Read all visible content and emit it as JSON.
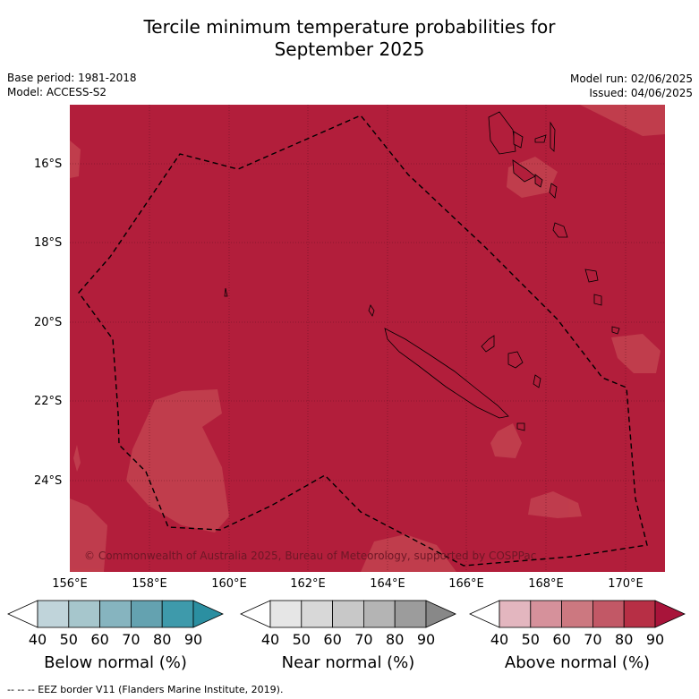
{
  "title_line1": "Tercile minimum temperature probabilities for",
  "title_line2": "September 2025",
  "base_period": "Base period: 1981-2018",
  "model": "Model: ACCESS-S2",
  "model_run": "Model run: 02/06/2025",
  "issued": "Issued: 04/06/2025",
  "lat_labels": [
    "16°S",
    "18°S",
    "20°S",
    "22°S",
    "24°S"
  ],
  "lon_labels": [
    "156°E",
    "158°E",
    "160°E",
    "162°E",
    "164°E",
    "166°E",
    "168°E",
    "170°E"
  ],
  "copyright": "© Commonwealth of Australia 2025, Bureau of Meteorology, supported by COSPPac",
  "map_colors": {
    "dominant": "#b21e3b",
    "lighter": "#c8485a",
    "ocean_dark": "#b21e3b"
  },
  "colorbars": [
    {
      "label": "Below normal (%)",
      "ticks": [
        "40",
        "50",
        "60",
        "70",
        "80",
        "90"
      ],
      "colors": [
        "#ffffff",
        "#c0d4da",
        "#a6c6cc",
        "#86b4bf",
        "#64a2b0",
        "#3e9aab",
        "#2b8fa1"
      ]
    },
    {
      "label": "Near normal (%)",
      "ticks": [
        "40",
        "50",
        "60",
        "70",
        "80",
        "90"
      ],
      "colors": [
        "#ffffff",
        "#e6e6e6",
        "#d8d8d8",
        "#c8c8c8",
        "#b4b4b4",
        "#9c9c9c",
        "#888888"
      ]
    },
    {
      "label": "Above normal (%)",
      "ticks": [
        "40",
        "50",
        "60",
        "70",
        "80",
        "90"
      ],
      "colors": [
        "#ffffff",
        "#e3b6bf",
        "#d6919b",
        "#cc7880",
        "#c25866",
        "#b72f45",
        "#a8143a"
      ]
    }
  ],
  "legend_eez": "--  --  -- EEZ border V11 (Flanders Marine Institute, 2019)."
}
